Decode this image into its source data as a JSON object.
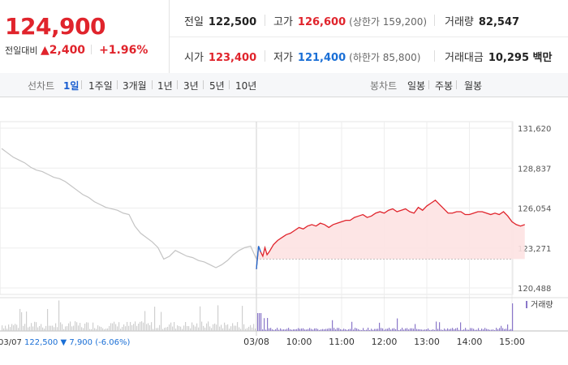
{
  "quote": {
    "price": "124,900",
    "change_label": "전일대비",
    "change_symbol": "▲",
    "change_value": "2,400",
    "change_pct": "+1.96%",
    "prev_close_label": "전일",
    "prev_close": "122,500",
    "open_label": "시가",
    "open": "123,400",
    "high_label": "고가",
    "high": "126,600",
    "upper_limit": "(상한가 159,200)",
    "low_label": "저가",
    "low": "121,400",
    "lower_limit": "(하한가 85,800)",
    "volume_label": "거래량",
    "volume": "82,547",
    "amount_label": "거래대금",
    "amount": "10,295 백만"
  },
  "toolbar": {
    "line_label": "선차트",
    "line_periods": [
      "1일",
      "1주일",
      "3개월",
      "1년",
      "3년",
      "5년",
      "10년"
    ],
    "active_period": "1일",
    "candle_label": "봉차트",
    "candle_periods": [
      "일봉",
      "주봉",
      "월봉"
    ]
  },
  "colors": {
    "up": "#e0242c",
    "down": "#1a6fd6",
    "prev_day": "#c4c4c4",
    "fill": "#fde2e2",
    "volume_bar": "#8a77c9"
  },
  "chart_data": {
    "type": "line",
    "ylim": [
      120488,
      131620
    ],
    "y_ticks": [
      131620,
      128837,
      126054,
      123271,
      120488
    ],
    "y_tick_labels": [
      "131,620",
      "128,837",
      "126,054",
      "123,271",
      "120,488"
    ],
    "x_tick_labels": [
      "03/08",
      "10:00",
      "11:00",
      "12:00",
      "13:00",
      "14:00",
      "15:00"
    ],
    "x_ticks_hours": [
      9,
      10,
      11,
      12,
      13,
      14,
      15
    ],
    "grid": true,
    "baseline": 122500,
    "prev_day": {
      "date": "03/07",
      "close": "122,500",
      "change": "▼ 7,900 (-6.06%)",
      "values": [
        130200,
        129900,
        129600,
        129400,
        129200,
        128900,
        128700,
        128600,
        128400,
        128200,
        128100,
        127900,
        127600,
        127300,
        127000,
        126800,
        126500,
        126300,
        126100,
        126000,
        125900,
        125700,
        125600,
        124800,
        124300,
        124000,
        123700,
        123300,
        122500,
        122700,
        123100,
        122900,
        122700,
        122600,
        122400,
        122300,
        122100,
        121900,
        122100,
        122400,
        122800,
        123100,
        123300,
        123400,
        122500
      ]
    },
    "series": [
      {
        "name": "",
        "x_hours": [
          9.0,
          9.05,
          9.1,
          9.15,
          9.2,
          9.25,
          9.3,
          9.4,
          9.5,
          9.6,
          9.7,
          9.8,
          9.9,
          10.0,
          10.1,
          10.2,
          10.3,
          10.4,
          10.5,
          10.6,
          10.7,
          10.8,
          10.9,
          11.0,
          11.1,
          11.2,
          11.3,
          11.4,
          11.5,
          11.6,
          11.7,
          11.8,
          11.9,
          12.0,
          12.1,
          12.2,
          12.3,
          12.4,
          12.5,
          12.6,
          12.7,
          12.8,
          12.9,
          13.0,
          13.1,
          13.2,
          13.3,
          13.4,
          13.5,
          13.6,
          13.7,
          13.8,
          13.9,
          14.0,
          14.1,
          14.2,
          14.3,
          14.4,
          14.5,
          14.6,
          14.7,
          14.8,
          14.9,
          15.0,
          15.1,
          15.2,
          15.3
        ],
        "values": [
          121800,
          123400,
          123000,
          122700,
          123300,
          122800,
          123000,
          123500,
          123800,
          124000,
          124200,
          124300,
          124500,
          124700,
          124600,
          124800,
          124900,
          124800,
          125000,
          124900,
          124700,
          124900,
          125000,
          125100,
          125200,
          125200,
          125400,
          125500,
          125600,
          125400,
          125500,
          125700,
          125800,
          125700,
          125900,
          126000,
          125800,
          125900,
          126000,
          125800,
          125700,
          126100,
          125900,
          126200,
          126400,
          126600,
          126300,
          126000,
          125700,
          125700,
          125800,
          125800,
          125600,
          125600,
          125700,
          125800,
          125800,
          125700,
          125600,
          125700,
          125600,
          125800,
          125500,
          125100,
          124900,
          124800,
          124900
        ]
      }
    ],
    "volume_label": "거래량"
  }
}
